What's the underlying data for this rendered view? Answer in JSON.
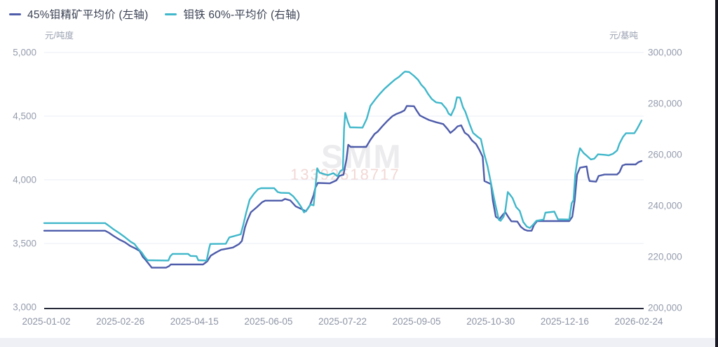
{
  "legend": [
    {
      "label": "45%钼精矿平均价 (左轴)",
      "color": "#4e5caa"
    },
    {
      "label": "钼铁 60%-平均价 (右轴)",
      "color": "#40b7ca"
    }
  ],
  "watermark": {
    "brand": "SMM",
    "phone": "13392518717"
  },
  "chart_data": {
    "type": "line",
    "title": "",
    "grid": "horizontal",
    "legend_position": "top-left",
    "x_axis": {
      "tick_labels": [
        "2025-01-02",
        "2025-02-26",
        "2025-04-15",
        "2025-06-05",
        "2025-07-22",
        "2025-09-05",
        "2025-10-30",
        "2025-12-16",
        "2026-02-24"
      ]
    },
    "left_axis": {
      "unit": "元/吨度",
      "min": 3000,
      "max": 5000,
      "ticks": [
        "5,000",
        "4,500",
        "4,000",
        "3,500",
        "3,000"
      ]
    },
    "right_axis": {
      "unit": "元/基吨",
      "min": 200000,
      "max": 300000,
      "ticks": [
        "300,000",
        "280,000",
        "260,000",
        "240,000",
        "220,000",
        "200,000"
      ]
    },
    "series": [
      {
        "name": "45%钼精矿平均价 (左轴)",
        "axis": "left",
        "color": "#4e5caa",
        "points": [
          [
            0.0,
            3600
          ],
          [
            0.102,
            3600
          ],
          [
            0.108,
            3585
          ],
          [
            0.116,
            3560
          ],
          [
            0.126,
            3530
          ],
          [
            0.135,
            3510
          ],
          [
            0.144,
            3480
          ],
          [
            0.153,
            3460
          ],
          [
            0.16,
            3440
          ],
          [
            0.165,
            3395
          ],
          [
            0.17,
            3370
          ],
          [
            0.175,
            3340
          ],
          [
            0.18,
            3310
          ],
          [
            0.204,
            3310
          ],
          [
            0.209,
            3322
          ],
          [
            0.212,
            3335
          ],
          [
            0.266,
            3335
          ],
          [
            0.273,
            3360
          ],
          [
            0.279,
            3405
          ],
          [
            0.288,
            3430
          ],
          [
            0.296,
            3450
          ],
          [
            0.316,
            3468
          ],
          [
            0.326,
            3495
          ],
          [
            0.331,
            3520
          ],
          [
            0.336,
            3625
          ],
          [
            0.34,
            3680
          ],
          [
            0.346,
            3745
          ],
          [
            0.356,
            3785
          ],
          [
            0.365,
            3825
          ],
          [
            0.37,
            3836
          ],
          [
            0.398,
            3836
          ],
          [
            0.403,
            3850
          ],
          [
            0.412,
            3838
          ],
          [
            0.421,
            3792
          ],
          [
            0.431,
            3770
          ],
          [
            0.438,
            3752
          ],
          [
            0.445,
            3800
          ],
          [
            0.451,
            3880
          ],
          [
            0.454,
            3938
          ],
          [
            0.458,
            3975
          ],
          [
            0.478,
            3972
          ],
          [
            0.489,
            3995
          ],
          [
            0.494,
            4030
          ],
          [
            0.501,
            4040
          ],
          [
            0.506,
            4160
          ],
          [
            0.509,
            4275
          ],
          [
            0.513,
            4258
          ],
          [
            0.539,
            4258
          ],
          [
            0.546,
            4313
          ],
          [
            0.553,
            4360
          ],
          [
            0.558,
            4377
          ],
          [
            0.566,
            4420
          ],
          [
            0.574,
            4460
          ],
          [
            0.583,
            4500
          ],
          [
            0.59,
            4518
          ],
          [
            0.597,
            4530
          ],
          [
            0.603,
            4545
          ],
          [
            0.607,
            4580
          ],
          [
            0.619,
            4578
          ],
          [
            0.624,
            4540
          ],
          [
            0.629,
            4505
          ],
          [
            0.636,
            4488
          ],
          [
            0.644,
            4470
          ],
          [
            0.656,
            4452
          ],
          [
            0.668,
            4438
          ],
          [
            0.675,
            4400
          ],
          [
            0.68,
            4368
          ],
          [
            0.687,
            4395
          ],
          [
            0.692,
            4420
          ],
          [
            0.698,
            4428
          ],
          [
            0.704,
            4370
          ],
          [
            0.71,
            4350
          ],
          [
            0.716,
            4310
          ],
          [
            0.723,
            4280
          ],
          [
            0.729,
            4230
          ],
          [
            0.734,
            4180
          ],
          [
            0.737,
            3990
          ],
          [
            0.748,
            3966
          ],
          [
            0.751,
            3838
          ],
          [
            0.756,
            3710
          ],
          [
            0.762,
            3691
          ],
          [
            0.768,
            3727
          ],
          [
            0.772,
            3745
          ],
          [
            0.778,
            3700
          ],
          [
            0.782,
            3674
          ],
          [
            0.792,
            3672
          ],
          [
            0.798,
            3630
          ],
          [
            0.804,
            3608
          ],
          [
            0.809,
            3600
          ],
          [
            0.816,
            3600
          ],
          [
            0.82,
            3645
          ],
          [
            0.825,
            3676
          ],
          [
            0.879,
            3676
          ],
          [
            0.884,
            3710
          ],
          [
            0.888,
            3838
          ],
          [
            0.892,
            4040
          ],
          [
            0.897,
            4095
          ],
          [
            0.908,
            4105
          ],
          [
            0.911,
            4020
          ],
          [
            0.913,
            3990
          ],
          [
            0.924,
            3985
          ],
          [
            0.928,
            4030
          ],
          [
            0.938,
            4042
          ],
          [
            0.959,
            4042
          ],
          [
            0.963,
            4060
          ],
          [
            0.968,
            4112
          ],
          [
            0.973,
            4121
          ],
          [
            0.99,
            4121
          ],
          [
            0.995,
            4139
          ],
          [
            1.0,
            4148
          ]
        ]
      },
      {
        "name": "钼铁 60%-平均价 (右轴)",
        "axis": "right",
        "color": "#40b7ca",
        "points": [
          [
            0.0,
            233000
          ],
          [
            0.102,
            233000
          ],
          [
            0.109,
            231800
          ],
          [
            0.117,
            230400
          ],
          [
            0.126,
            229000
          ],
          [
            0.135,
            227500
          ],
          [
            0.144,
            225800
          ],
          [
            0.151,
            224800
          ],
          [
            0.157,
            223000
          ],
          [
            0.163,
            221500
          ],
          [
            0.168,
            219800
          ],
          [
            0.173,
            218400
          ],
          [
            0.208,
            218300
          ],
          [
            0.211,
            220000
          ],
          [
            0.215,
            220900
          ],
          [
            0.241,
            220900
          ],
          [
            0.245,
            220100
          ],
          [
            0.255,
            220000
          ],
          [
            0.258,
            218400
          ],
          [
            0.272,
            218300
          ],
          [
            0.276,
            223000
          ],
          [
            0.278,
            224800
          ],
          [
            0.304,
            224900
          ],
          [
            0.31,
            227400
          ],
          [
            0.329,
            228600
          ],
          [
            0.333,
            232000
          ],
          [
            0.338,
            237000
          ],
          [
            0.344,
            242200
          ],
          [
            0.351,
            244500
          ],
          [
            0.358,
            246300
          ],
          [
            0.363,
            246700
          ],
          [
            0.385,
            246700
          ],
          [
            0.391,
            245200
          ],
          [
            0.396,
            244900
          ],
          [
            0.41,
            244800
          ],
          [
            0.417,
            243500
          ],
          [
            0.424,
            241500
          ],
          [
            0.43,
            239400
          ],
          [
            0.435,
            237200
          ],
          [
            0.441,
            238500
          ],
          [
            0.446,
            240300
          ],
          [
            0.451,
            240000
          ],
          [
            0.454,
            247000
          ],
          [
            0.457,
            254500
          ],
          [
            0.461,
            252800
          ],
          [
            0.468,
            252300
          ],
          [
            0.475,
            251800
          ],
          [
            0.484,
            252600
          ],
          [
            0.491,
            251400
          ],
          [
            0.496,
            253500
          ],
          [
            0.5,
            254000
          ],
          [
            0.502,
            270000
          ],
          [
            0.504,
            276300
          ],
          [
            0.508,
            273000
          ],
          [
            0.512,
            270600
          ],
          [
            0.533,
            270500
          ],
          [
            0.54,
            274000
          ],
          [
            0.546,
            279000
          ],
          [
            0.554,
            281500
          ],
          [
            0.562,
            283800
          ],
          [
            0.57,
            285800
          ],
          [
            0.579,
            287700
          ],
          [
            0.587,
            289300
          ],
          [
            0.594,
            290400
          ],
          [
            0.601,
            292000
          ],
          [
            0.604,
            292500
          ],
          [
            0.611,
            292300
          ],
          [
            0.619,
            290800
          ],
          [
            0.626,
            289200
          ],
          [
            0.631,
            287400
          ],
          [
            0.637,
            285900
          ],
          [
            0.643,
            283600
          ],
          [
            0.649,
            281700
          ],
          [
            0.656,
            280400
          ],
          [
            0.665,
            280100
          ],
          [
            0.673,
            277900
          ],
          [
            0.677,
            276000
          ],
          [
            0.681,
            275300
          ],
          [
            0.687,
            278300
          ],
          [
            0.691,
            282400
          ],
          [
            0.696,
            282300
          ],
          [
            0.701,
            278500
          ],
          [
            0.705,
            276700
          ],
          [
            0.712,
            272000
          ],
          [
            0.718,
            268400
          ],
          [
            0.725,
            267000
          ],
          [
            0.731,
            266000
          ],
          [
            0.736,
            260600
          ],
          [
            0.742,
            255500
          ],
          [
            0.748,
            248600
          ],
          [
            0.755,
            240500
          ],
          [
            0.761,
            234300
          ],
          [
            0.764,
            233900
          ],
          [
            0.769,
            235500
          ],
          [
            0.772,
            238000
          ],
          [
            0.776,
            245200
          ],
          [
            0.779,
            244400
          ],
          [
            0.784,
            242800
          ],
          [
            0.79,
            239300
          ],
          [
            0.796,
            237800
          ],
          [
            0.802,
            233400
          ],
          [
            0.808,
            231600
          ],
          [
            0.813,
            231100
          ],
          [
            0.819,
            232500
          ],
          [
            0.824,
            233900
          ],
          [
            0.836,
            234400
          ],
          [
            0.839,
            237100
          ],
          [
            0.854,
            237500
          ],
          [
            0.86,
            234500
          ],
          [
            0.879,
            234400
          ],
          [
            0.883,
            240800
          ],
          [
            0.886,
            242000
          ],
          [
            0.889,
            252000
          ],
          [
            0.893,
            258500
          ],
          [
            0.897,
            262400
          ],
          [
            0.903,
            260500
          ],
          [
            0.908,
            259500
          ],
          [
            0.915,
            258000
          ],
          [
            0.921,
            258300
          ],
          [
            0.927,
            260000
          ],
          [
            0.938,
            259800
          ],
          [
            0.945,
            259600
          ],
          [
            0.952,
            260200
          ],
          [
            0.959,
            261500
          ],
          [
            0.963,
            264200
          ],
          [
            0.969,
            266900
          ],
          [
            0.974,
            268300
          ],
          [
            0.988,
            268300
          ],
          [
            0.992,
            269800
          ],
          [
            0.996,
            271500
          ],
          [
            1.0,
            273300
          ]
        ]
      }
    ]
  }
}
